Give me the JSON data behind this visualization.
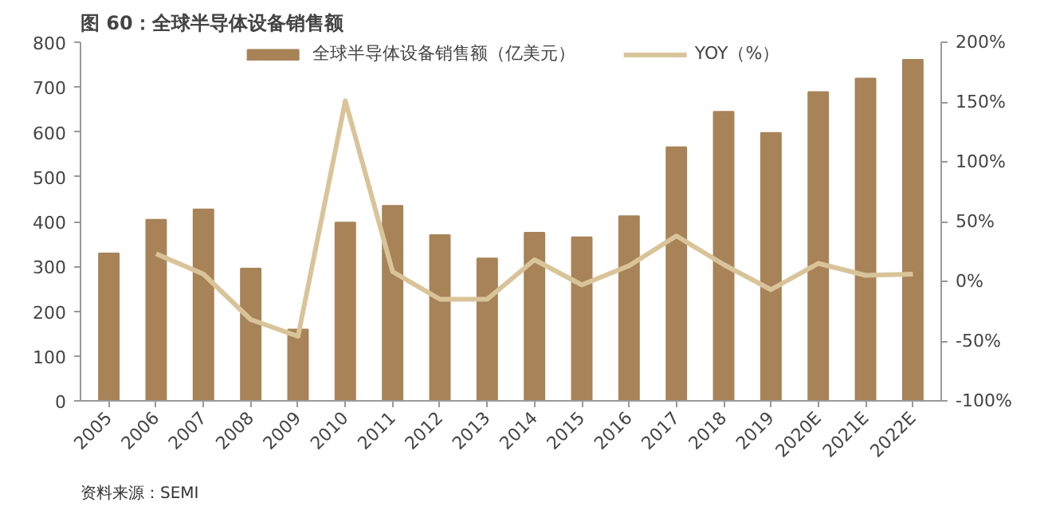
{
  "chart_data": {
    "type": "bar",
    "title": "图 60：全球半导体设备销售额",
    "categories": [
      "2005",
      "2006",
      "2007",
      "2008",
      "2009",
      "2010",
      "2011",
      "2012",
      "2013",
      "2014",
      "2015",
      "2016",
      "2017",
      "2018",
      "2019",
      "2020E",
      "2021E",
      "2022E"
    ],
    "series": [
      {
        "name": "全球半导体设备销售额（亿美元）",
        "color": "#a88358",
        "values": [
          329,
          404,
          427,
          295,
          159,
          398,
          435,
          370,
          318,
          375,
          365,
          412,
          566,
          645,
          598,
          689,
          719,
          761
        ]
      },
      {
        "name": "YOY（%）",
        "type": "line",
        "axis": "y2",
        "color": "#d9c49a",
        "values": [
          null,
          23,
          6,
          -32,
          -46,
          151,
          8,
          -15,
          -15,
          18,
          -3,
          13,
          38,
          14,
          -7,
          15,
          5,
          6
        ]
      }
    ],
    "ylim": [
      0,
      800
    ],
    "yticks": [
      0,
      100,
      200,
      300,
      400,
      500,
      600,
      700,
      800
    ],
    "y2lim": [
      -100,
      200
    ],
    "y2ticks": [
      {
        "value": -100,
        "label": "-100%"
      },
      {
        "value": -50,
        "label": "-50%"
      },
      {
        "value": 0,
        "label": "0%"
      },
      {
        "value": 50,
        "label": "50%"
      },
      {
        "value": 100,
        "label": "100%"
      },
      {
        "value": 150,
        "label": "150%"
      },
      {
        "value": 200,
        "label": "200%"
      }
    ],
    "legend": "top",
    "grid": false,
    "annotations": [
      "资料来源：SEMI"
    ]
  }
}
